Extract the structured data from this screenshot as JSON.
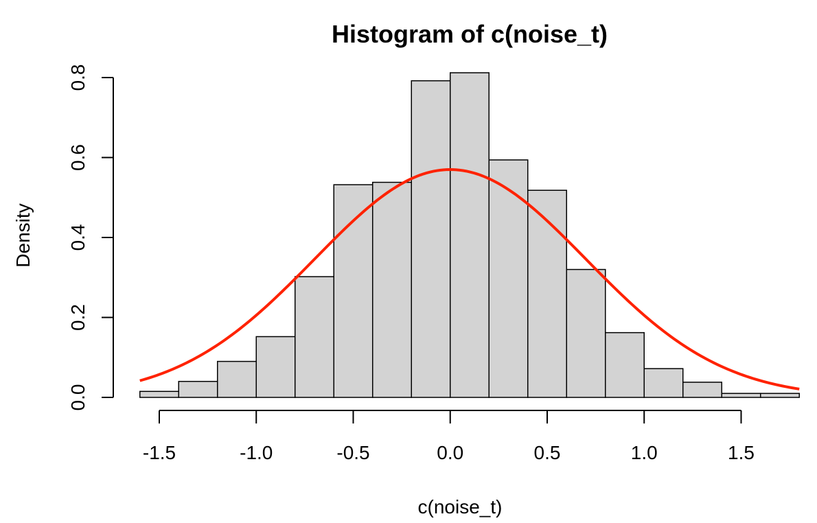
{
  "chart_data": {
    "type": "bar",
    "title": "Histogram of c(noise_t)",
    "xlabel": "c(noise_t)",
    "ylabel": "Density",
    "xlim": [
      -1.6,
      1.8
    ],
    "ylim": [
      0,
      0.8
    ],
    "x_ticks": [
      -1.5,
      -1.0,
      -0.5,
      0.0,
      0.5,
      1.0,
      1.5
    ],
    "x_tick_labels": [
      "-1.5",
      "-1.0",
      "-0.5",
      "0.0",
      "0.5",
      "1.0",
      "1.5"
    ],
    "y_ticks": [
      0.0,
      0.2,
      0.4,
      0.6,
      0.8
    ],
    "y_tick_labels": [
      "0.0",
      "0.2",
      "0.4",
      "0.6",
      "0.8"
    ],
    "bins": [
      {
        "x0": -1.6,
        "x1": -1.4,
        "density": 0.015
      },
      {
        "x0": -1.4,
        "x1": -1.2,
        "density": 0.04
      },
      {
        "x0": -1.2,
        "x1": -1.0,
        "density": 0.09
      },
      {
        "x0": -1.0,
        "x1": -0.8,
        "density": 0.152
      },
      {
        "x0": -0.8,
        "x1": -0.6,
        "density": 0.302
      },
      {
        "x0": -0.6,
        "x1": -0.4,
        "density": 0.532
      },
      {
        "x0": -0.4,
        "x1": -0.2,
        "density": 0.538
      },
      {
        "x0": -0.2,
        "x1": 0.0,
        "density": 0.792
      },
      {
        "x0": 0.0,
        "x1": 0.2,
        "density": 0.812
      },
      {
        "x0": 0.2,
        "x1": 0.4,
        "density": 0.594
      },
      {
        "x0": 0.4,
        "x1": 0.6,
        "density": 0.518
      },
      {
        "x0": 0.6,
        "x1": 0.8,
        "density": 0.32
      },
      {
        "x0": 0.8,
        "x1": 1.0,
        "density": 0.162
      },
      {
        "x0": 1.0,
        "x1": 1.2,
        "density": 0.072
      },
      {
        "x0": 1.2,
        "x1": 1.4,
        "density": 0.038
      },
      {
        "x0": 1.4,
        "x1": 1.6,
        "density": 0.01
      },
      {
        "x0": 1.6,
        "x1": 1.8,
        "density": 0.01
      }
    ],
    "density_curve": {
      "type": "normal",
      "mean": 0.0,
      "sd": 0.7,
      "color": "#ff2200"
    },
    "bar_fill": "#d3d3d3",
    "bar_stroke": "#000000",
    "grid": false,
    "legend": "none"
  }
}
